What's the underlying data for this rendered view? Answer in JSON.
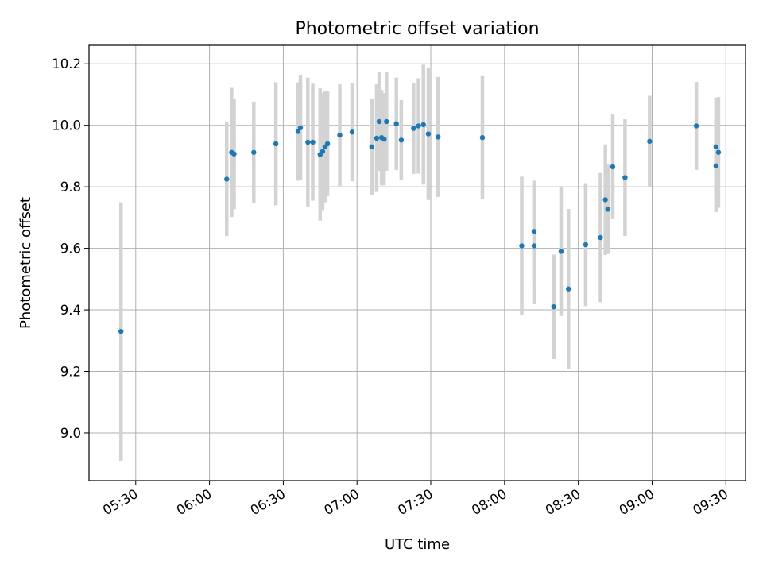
{
  "chart_data": {
    "type": "scatter",
    "title": "Photometric offset variation",
    "xlabel": "UTC time",
    "ylabel": "Photometric offset",
    "x_unit": "UTC time (HH:MM)",
    "xlim": [
      "05:11",
      "09:38"
    ],
    "ylim": [
      8.845,
      10.26
    ],
    "xticks": [
      "05:30",
      "06:00",
      "06:30",
      "07:00",
      "07:30",
      "08:00",
      "08:30",
      "09:00",
      "09:30"
    ],
    "yticks": [
      9.0,
      9.2,
      9.4,
      9.6,
      9.8,
      10.0,
      10.2
    ],
    "ytick_labels": [
      "9.0",
      "9.2",
      "9.4",
      "9.6",
      "9.8",
      "10.0",
      "10.2"
    ],
    "grid": true,
    "colors": {
      "points": "#1f77b4",
      "errorbars": "#d3d3d3",
      "grid": "#b0b0b0"
    },
    "points": [
      {
        "x": "05:24",
        "y": 9.33,
        "err": 0.42
      },
      {
        "x": "06:07",
        "y": 9.825,
        "err": 0.185
      },
      {
        "x": "06:09",
        "y": 9.912,
        "err": 0.21
      },
      {
        "x": "06:10",
        "y": 9.907,
        "err": 0.18
      },
      {
        "x": "06:18",
        "y": 9.912,
        "err": 0.165
      },
      {
        "x": "06:27",
        "y": 9.94,
        "err": 0.2
      },
      {
        "x": "06:36",
        "y": 9.98,
        "err": 0.16
      },
      {
        "x": "06:37",
        "y": 9.992,
        "err": 0.17
      },
      {
        "x": "06:40",
        "y": 9.945,
        "err": 0.21
      },
      {
        "x": "06:42",
        "y": 9.945,
        "err": 0.19
      },
      {
        "x": "06:45",
        "y": 9.905,
        "err": 0.215
      },
      {
        "x": "06:46",
        "y": 9.915,
        "err": 0.19
      },
      {
        "x": "06:47",
        "y": 9.93,
        "err": 0.18
      },
      {
        "x": "06:48",
        "y": 9.94,
        "err": 0.17
      },
      {
        "x": "06:53",
        "y": 9.968,
        "err": 0.165
      },
      {
        "x": "06:58",
        "y": 9.978,
        "err": 0.16
      },
      {
        "x": "07:06",
        "y": 9.93,
        "err": 0.155
      },
      {
        "x": "07:08",
        "y": 9.958,
        "err": 0.175
      },
      {
        "x": "07:09",
        "y": 10.012,
        "err": 0.16
      },
      {
        "x": "07:10",
        "y": 9.96,
        "err": 0.155
      },
      {
        "x": "07:11",
        "y": 9.955,
        "err": 0.15
      },
      {
        "x": "07:12",
        "y": 10.012,
        "err": 0.16
      },
      {
        "x": "07:16",
        "y": 10.005,
        "err": 0.15
      },
      {
        "x": "07:18",
        "y": 9.952,
        "err": 0.13
      },
      {
        "x": "07:23",
        "y": 9.99,
        "err": 0.148
      },
      {
        "x": "07:25",
        "y": 9.998,
        "err": 0.155
      },
      {
        "x": "07:27",
        "y": 10.002,
        "err": 0.195
      },
      {
        "x": "07:29",
        "y": 9.972,
        "err": 0.215
      },
      {
        "x": "07:33",
        "y": 9.962,
        "err": 0.195
      },
      {
        "x": "07:51",
        "y": 9.96,
        "err": 0.2
      },
      {
        "x": "08:07",
        "y": 9.608,
        "err": 0.225
      },
      {
        "x": "08:12",
        "y": 9.608,
        "err": 0.19
      },
      {
        "x": "08:12",
        "y": 9.655,
        "err": 0.165
      },
      {
        "x": "08:20",
        "y": 9.41,
        "err": 0.17
      },
      {
        "x": "08:23",
        "y": 9.59,
        "err": 0.21
      },
      {
        "x": "08:26",
        "y": 9.468,
        "err": 0.26
      },
      {
        "x": "08:33",
        "y": 9.612,
        "err": 0.2
      },
      {
        "x": "08:39",
        "y": 9.635,
        "err": 0.21
      },
      {
        "x": "08:41",
        "y": 9.758,
        "err": 0.18
      },
      {
        "x": "08:42",
        "y": 9.727,
        "err": 0.145
      },
      {
        "x": "08:44",
        "y": 9.865,
        "err": 0.17
      },
      {
        "x": "08:49",
        "y": 9.83,
        "err": 0.19
      },
      {
        "x": "08:59",
        "y": 9.948,
        "err": 0.148
      },
      {
        "x": "09:18",
        "y": 9.998,
        "err": 0.143
      },
      {
        "x": "09:26",
        "y": 9.93,
        "err": 0.16
      },
      {
        "x": "09:26",
        "y": 9.868,
        "err": 0.15
      },
      {
        "x": "09:27",
        "y": 9.912,
        "err": 0.18
      }
    ]
  }
}
